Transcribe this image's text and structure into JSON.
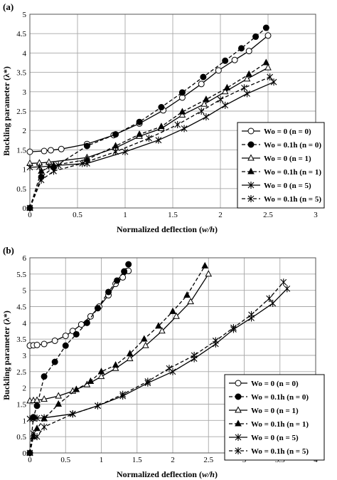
{
  "chart_data": [
    {
      "type": "line",
      "panel_label": "(a)",
      "xlabel_prefix": "Normalized deflection (",
      "xlabel_italic": "w/h",
      "xlabel_suffix": ")",
      "ylabel": "Buckling parameter (λ*)",
      "xlim": [
        0,
        3
      ],
      "ylim": [
        0,
        5
      ],
      "xticks": [
        "0",
        "0.5",
        "1",
        "1.5",
        "2",
        "2.5",
        "3"
      ],
      "yticks": [
        "0",
        "0.5",
        "1",
        "1.5",
        "2",
        "2.5",
        "3",
        "3.5",
        "4",
        "4.5",
        "5"
      ],
      "xtick_values": [
        0,
        0.5,
        1,
        1.5,
        2,
        2.5,
        3
      ],
      "ytick_values": [
        0,
        0.5,
        1,
        1.5,
        2,
        2.5,
        3,
        3.5,
        4,
        4.5,
        5
      ],
      "grid": true,
      "legend_position": "bottom-right",
      "series": [
        {
          "name": "Wo = 0 (n = 0)",
          "marker": "circle-open",
          "dash": "solid",
          "x": [
            0,
            0.15,
            0.22,
            0.33,
            0.6,
            0.88,
            1.15,
            1.4,
            1.6,
            1.8,
            1.98,
            2.15,
            2.3,
            2.5
          ],
          "y": [
            1.45,
            1.47,
            1.49,
            1.52,
            1.65,
            1.88,
            2.18,
            2.52,
            2.85,
            3.2,
            3.55,
            3.82,
            4.05,
            4.45
          ]
        },
        {
          "name": "Wo = 0.1h (n = 0)",
          "marker": "circle-filled",
          "dash": "dashed",
          "x": [
            0,
            0.12,
            0.25,
            0.6,
            0.9,
            1.15,
            1.38,
            1.6,
            1.82,
            2.05,
            2.22,
            2.37,
            2.48
          ],
          "y": [
            0,
            0.8,
            1.05,
            1.6,
            1.9,
            2.22,
            2.6,
            2.98,
            3.38,
            3.8,
            4.12,
            4.42,
            4.65
          ]
        },
        {
          "name": "Wo = 0 (n = 1)",
          "marker": "triangle-open",
          "dash": "solid",
          "x": [
            0,
            0.1,
            0.2,
            0.6,
            0.9,
            1.15,
            1.38,
            1.6,
            1.83,
            2.05,
            2.28,
            2.5
          ],
          "y": [
            1.15,
            1.16,
            1.18,
            1.3,
            1.55,
            1.85,
            2.05,
            2.4,
            2.68,
            3.0,
            3.33,
            3.62
          ]
        },
        {
          "name": "Wo = 0.1h (n = 1)",
          "marker": "triangle-filled",
          "dash": "dashed",
          "x": [
            0,
            0.12,
            0.25,
            0.6,
            0.9,
            1.15,
            1.38,
            1.6,
            1.85,
            2.07,
            2.3,
            2.48
          ],
          "y": [
            0,
            0.95,
            1.1,
            1.25,
            1.6,
            1.9,
            2.1,
            2.48,
            2.8,
            3.1,
            3.45,
            3.75
          ]
        },
        {
          "name": "Wo = 0 (n = 5)",
          "marker": "star",
          "dash": "solid",
          "x": [
            0,
            0.1,
            0.2,
            0.3,
            0.6,
            1.0,
            1.35,
            1.62,
            1.85,
            2.05,
            2.28,
            2.56
          ],
          "y": [
            1.05,
            1.06,
            1.08,
            1.1,
            1.15,
            1.45,
            1.75,
            2.05,
            2.35,
            2.65,
            2.95,
            3.25
          ]
        },
        {
          "name": "Wo = 0.1h (n = 5)",
          "marker": "star",
          "dash": "dashed",
          "x": [
            0,
            0.12,
            0.25,
            0.55,
            0.9,
            1.25,
            1.55,
            1.8,
            2.0,
            2.25,
            2.52
          ],
          "y": [
            0,
            0.72,
            0.95,
            1.15,
            1.45,
            1.8,
            2.15,
            2.5,
            2.8,
            3.1,
            3.38
          ]
        }
      ]
    },
    {
      "type": "line",
      "panel_label": "(b)",
      "xlabel_prefix": "Normalized deflection (",
      "xlabel_italic": "w/h",
      "xlabel_suffix": ")",
      "ylabel": "Buckling parameter (λ*)",
      "xlim": [
        0,
        4
      ],
      "ylim": [
        0,
        6
      ],
      "xticks": [
        "0",
        "0.5",
        "1",
        "1.5",
        "2",
        "2.5",
        "3",
        "3.5",
        "4"
      ],
      "yticks": [
        "0",
        "0.5",
        "1",
        "1.5",
        "2",
        "2.5",
        "3",
        "3.5",
        "4",
        "4.5",
        "5",
        "5.5",
        "6"
      ],
      "xtick_values": [
        0,
        0.5,
        1,
        1.5,
        2,
        2.5,
        3,
        3.5,
        4
      ],
      "ytick_values": [
        0,
        0.5,
        1,
        1.5,
        2,
        2.5,
        3,
        3.5,
        4,
        4.5,
        5,
        5.5,
        6
      ],
      "grid": true,
      "legend_position": "bottom-right",
      "series": [
        {
          "name": "Wo = 0 (n = 0)",
          "marker": "circle-open",
          "dash": "solid",
          "x": [
            0,
            0.05,
            0.1,
            0.2,
            0.35,
            0.5,
            0.6,
            0.72,
            0.85,
            0.97,
            1.1,
            1.2,
            1.3,
            1.38
          ],
          "y": [
            3.3,
            3.31,
            3.32,
            3.35,
            3.45,
            3.6,
            3.75,
            3.95,
            4.2,
            4.5,
            4.85,
            5.2,
            5.4,
            5.6
          ]
        },
        {
          "name": "Wo = 0.1h (n = 0)",
          "marker": "circle-filled",
          "dash": "dashed",
          "x": [
            0,
            0.05,
            0.1,
            0.2,
            0.35,
            0.5,
            0.65,
            0.8,
            0.95,
            1.1,
            1.22,
            1.32,
            1.38
          ],
          "y": [
            0,
            1.1,
            1.45,
            2.35,
            2.8,
            3.3,
            3.65,
            4.0,
            4.45,
            4.95,
            5.3,
            5.58,
            5.8
          ]
        },
        {
          "name": "Wo = 0 (n = 1)",
          "marker": "triangle-open",
          "dash": "solid",
          "x": [
            0,
            0.05,
            0.1,
            0.2,
            0.4,
            0.6,
            0.8,
            1.0,
            1.2,
            1.4,
            1.62,
            1.85,
            2.05,
            2.25,
            2.5
          ],
          "y": [
            1.6,
            1.61,
            1.62,
            1.65,
            1.75,
            1.9,
            2.1,
            2.35,
            2.6,
            2.9,
            3.3,
            3.75,
            4.2,
            4.65,
            5.5
          ]
        },
        {
          "name": "Wo = 0.1h (n = 1)",
          "marker": "triangle-filled",
          "dash": "dashed",
          "x": [
            0,
            0.05,
            0.1,
            0.2,
            0.4,
            0.65,
            0.85,
            1.0,
            1.2,
            1.4,
            1.6,
            1.8,
            2.0,
            2.2,
            2.45
          ],
          "y": [
            0,
            0.5,
            0.75,
            1.05,
            1.5,
            1.95,
            2.2,
            2.5,
            2.7,
            3.05,
            3.5,
            3.9,
            4.35,
            4.85,
            5.75
          ]
        },
        {
          "name": "Wo = 0 (n = 5)",
          "marker": "star",
          "dash": "solid",
          "x": [
            0,
            0.05,
            0.1,
            0.2,
            0.6,
            0.95,
            1.3,
            1.65,
            2.0,
            2.3,
            2.6,
            2.85,
            3.1,
            3.4,
            3.6
          ],
          "y": [
            1.05,
            1.06,
            1.07,
            1.08,
            1.2,
            1.45,
            1.75,
            2.15,
            2.5,
            2.9,
            3.35,
            3.8,
            4.15,
            4.6,
            5.05
          ]
        },
        {
          "name": "Wo = 0.1h (n = 5)",
          "marker": "star",
          "dash": "dashed",
          "x": [
            0,
            0.05,
            0.1,
            0.2,
            0.6,
            0.95,
            1.3,
            1.65,
            1.95,
            2.3,
            2.6,
            2.85,
            3.1,
            3.35,
            3.55
          ],
          "y": [
            0,
            0.6,
            0.5,
            0.8,
            1.2,
            1.45,
            1.8,
            2.2,
            2.6,
            3.0,
            3.45,
            3.85,
            4.25,
            4.75,
            5.25
          ]
        }
      ]
    }
  ]
}
